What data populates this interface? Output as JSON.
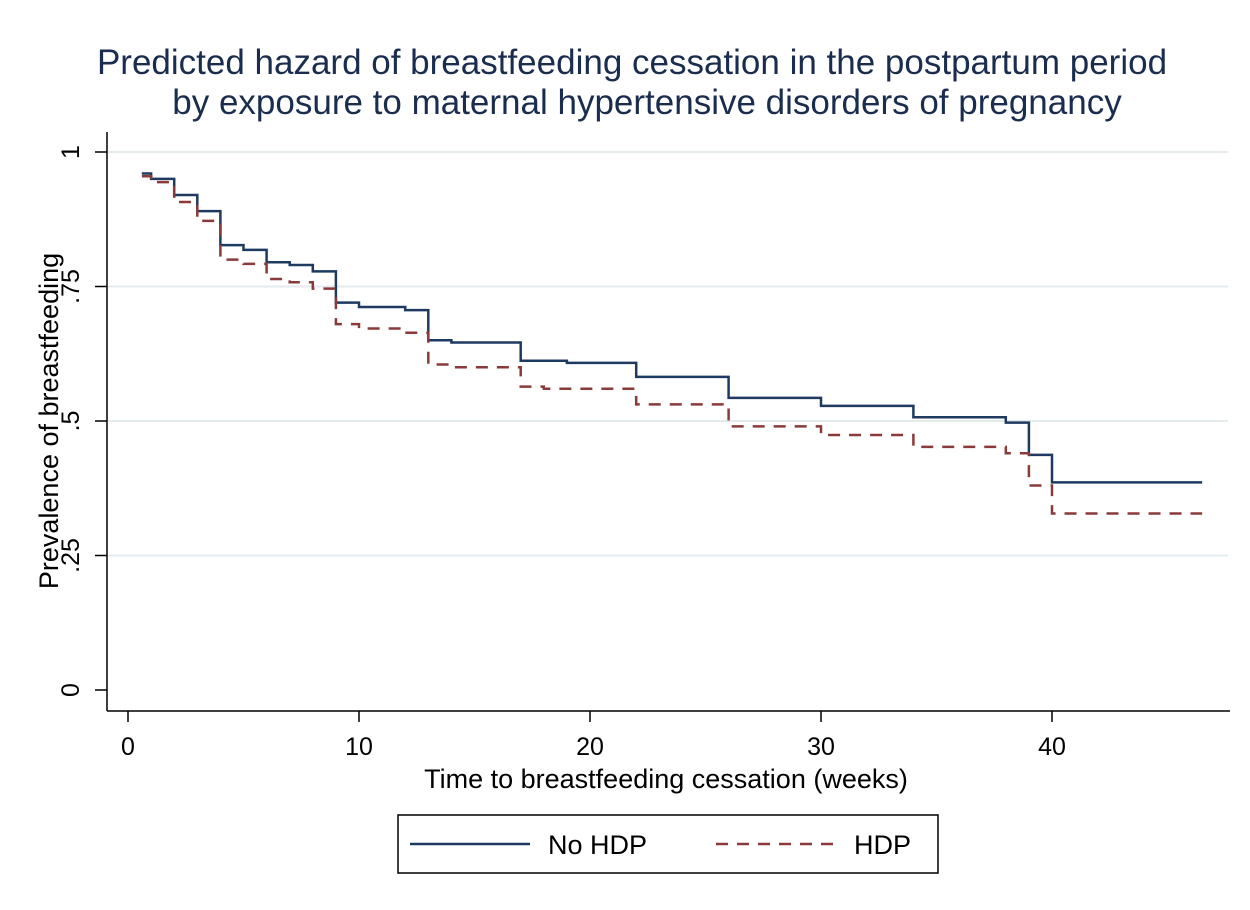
{
  "chart_data": {
    "type": "line",
    "title": [
      "Predicted hazard of breastfeeding cessation in the postpartum period",
      "by exposure to maternal hypertensive disorders of pregnancy"
    ],
    "xlabel": "Time to breastfeeding cessation (weeks)",
    "ylabel": "Prevalence of breastfeeding",
    "xlim": [
      0,
      46.5
    ],
    "ylim": [
      0,
      1
    ],
    "x_ticks": [
      0,
      10,
      20,
      30,
      40
    ],
    "x_tick_labels": [
      "0",
      "10",
      "20",
      "30",
      "40"
    ],
    "y_ticks": [
      0,
      0.25,
      0.5,
      0.75,
      1
    ],
    "y_tick_labels": [
      "0",
      ".25",
      ".5",
      ".75",
      "1"
    ],
    "grid": true,
    "legend_position": "bottom",
    "series": [
      {
        "name": "No HDP",
        "color": "#1f3a60",
        "style": "solid",
        "step": true,
        "x": [
          0.6,
          1,
          2,
          3,
          4,
          5,
          6,
          7,
          8,
          9,
          10,
          12,
          13,
          14,
          17,
          19,
          22,
          26,
          30,
          34,
          38,
          39,
          40,
          46.5
        ],
        "y": [
          0.96,
          0.95,
          0.92,
          0.89,
          0.827,
          0.818,
          0.795,
          0.79,
          0.778,
          0.72,
          0.712,
          0.706,
          0.65,
          0.646,
          0.612,
          0.608,
          0.582,
          0.543,
          0.528,
          0.507,
          0.497,
          0.437,
          0.386,
          0.386
        ]
      },
      {
        "name": "HDP",
        "color": "#8b3a3a",
        "style": "dashed",
        "step": true,
        "x": [
          0.6,
          1,
          2,
          3,
          4,
          5,
          6,
          7,
          8,
          9,
          10,
          12,
          13,
          14,
          17,
          18,
          22,
          26,
          30,
          34,
          38,
          39,
          40,
          46.5
        ],
        "y": [
          0.955,
          0.944,
          0.907,
          0.872,
          0.8,
          0.792,
          0.764,
          0.758,
          0.746,
          0.68,
          0.672,
          0.664,
          0.605,
          0.6,
          0.564,
          0.56,
          0.531,
          0.49,
          0.474,
          0.452,
          0.44,
          0.38,
          0.328,
          0.328
        ]
      }
    ]
  }
}
